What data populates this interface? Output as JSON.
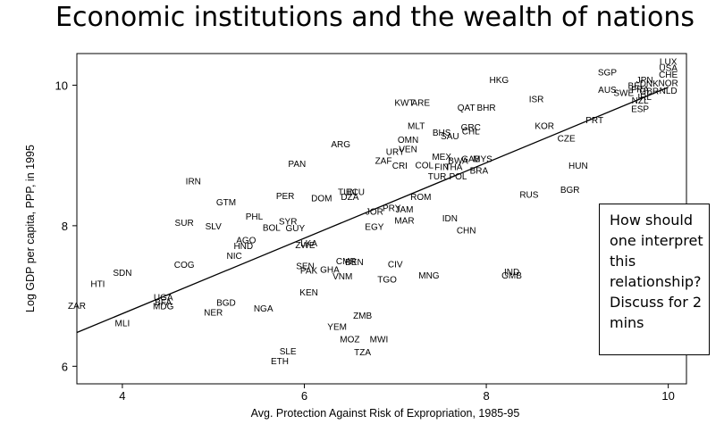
{
  "chart_data": {
    "type": "scatter",
    "title": "Economic institutions and the wealth of nations",
    "xlabel": "Avg. Protection Against Risk of Expropriation, 1985-95",
    "ylabel": "Log GDP per capita, PPP, in 1995",
    "xlim": [
      3.5,
      10.2
    ],
    "ylim": [
      5.75,
      10.45
    ],
    "xticks": [
      4,
      6,
      8,
      10
    ],
    "yticks": [
      6,
      8,
      10
    ],
    "grid": false,
    "fit_line": {
      "x": [
        3.5,
        10.0
      ],
      "y": [
        6.48,
        9.97
      ]
    },
    "points": [
      {
        "label": "ZAR",
        "x": 3.5,
        "y": 6.87
      },
      {
        "label": "HTI",
        "x": 3.73,
        "y": 7.18
      },
      {
        "label": "SDN",
        "x": 4.0,
        "y": 7.34
      },
      {
        "label": "MLI",
        "x": 4.0,
        "y": 6.62
      },
      {
        "label": "UGA",
        "x": 4.45,
        "y": 6.99
      },
      {
        "label": "MDG",
        "x": 4.45,
        "y": 6.86
      },
      {
        "label": "BFA",
        "x": 4.45,
        "y": 6.92
      },
      {
        "label": "COG",
        "x": 4.68,
        "y": 7.45
      },
      {
        "label": "BGD",
        "x": 5.14,
        "y": 6.91
      },
      {
        "label": "NER",
        "x": 5.0,
        "y": 6.77
      },
      {
        "label": "NGA",
        "x": 5.55,
        "y": 6.83
      },
      {
        "label": "IRN",
        "x": 4.78,
        "y": 8.64
      },
      {
        "label": "SUR",
        "x": 4.68,
        "y": 8.05
      },
      {
        "label": "SLV",
        "x": 5.0,
        "y": 8.0
      },
      {
        "label": "GTM",
        "x": 5.14,
        "y": 8.34
      },
      {
        "label": "PHL",
        "x": 5.45,
        "y": 8.14
      },
      {
        "label": "HND",
        "x": 5.33,
        "y": 7.72
      },
      {
        "label": "AGO",
        "x": 5.36,
        "y": 7.8
      },
      {
        "label": "NIC",
        "x": 5.23,
        "y": 7.58
      },
      {
        "label": "BOL",
        "x": 5.64,
        "y": 7.98
      },
      {
        "label": "GUY",
        "x": 5.9,
        "y": 7.97
      },
      {
        "label": "SYR",
        "x": 5.82,
        "y": 8.07
      },
      {
        "label": "PER",
        "x": 5.79,
        "y": 8.43
      },
      {
        "label": "PAN",
        "x": 5.92,
        "y": 8.89
      },
      {
        "label": "ARG",
        "x": 6.4,
        "y": 9.17
      },
      {
        "label": "DOM",
        "x": 6.19,
        "y": 8.4
      },
      {
        "label": "TUN",
        "x": 6.47,
        "y": 8.49
      },
      {
        "label": "ECU",
        "x": 6.56,
        "y": 8.49
      },
      {
        "label": "DZA",
        "x": 6.5,
        "y": 8.42
      },
      {
        "label": "ZMB",
        "x": 6.64,
        "y": 6.73
      },
      {
        "label": "YEM",
        "x": 6.36,
        "y": 6.57
      },
      {
        "label": "MOZ",
        "x": 6.5,
        "y": 6.39
      },
      {
        "label": "MWI",
        "x": 6.82,
        "y": 6.39
      },
      {
        "label": "TZA",
        "x": 6.64,
        "y": 6.21
      },
      {
        "label": "SLE",
        "x": 5.82,
        "y": 6.22
      },
      {
        "label": "ETH",
        "x": 5.73,
        "y": 6.08
      },
      {
        "label": "KEN",
        "x": 6.05,
        "y": 7.06
      },
      {
        "label": "SEN",
        "x": 6.01,
        "y": 7.43
      },
      {
        "label": "PAK",
        "x": 6.05,
        "y": 7.37
      },
      {
        "label": "GHA",
        "x": 6.28,
        "y": 7.38
      },
      {
        "label": "VNM",
        "x": 6.42,
        "y": 7.29
      },
      {
        "label": "CMR",
        "x": 6.46,
        "y": 7.5
      },
      {
        "label": "BEN",
        "x": 6.55,
        "y": 7.49
      },
      {
        "label": "ZWE",
        "x": 6.01,
        "y": 7.73
      },
      {
        "label": "LKA",
        "x": 6.05,
        "y": 7.76
      },
      {
        "label": "TGO",
        "x": 6.91,
        "y": 7.24
      },
      {
        "label": "CIV",
        "x": 7.0,
        "y": 7.46
      },
      {
        "label": "MNG",
        "x": 7.37,
        "y": 7.3
      },
      {
        "label": "EGY",
        "x": 6.77,
        "y": 7.99
      },
      {
        "label": "IDN",
        "x": 7.6,
        "y": 8.11
      },
      {
        "label": "MAR",
        "x": 7.1,
        "y": 8.08
      },
      {
        "label": "JAM",
        "x": 7.1,
        "y": 8.24
      },
      {
        "label": "PRY",
        "x": 6.96,
        "y": 8.26
      },
      {
        "label": "JOR",
        "x": 6.77,
        "y": 8.21
      },
      {
        "label": "ROM",
        "x": 7.28,
        "y": 8.42
      },
      {
        "label": "CHN",
        "x": 7.78,
        "y": 7.94
      },
      {
        "label": "IND",
        "x": 8.28,
        "y": 7.35
      },
      {
        "label": "GMB",
        "x": 8.28,
        "y": 7.3
      },
      {
        "label": "RUS",
        "x": 8.47,
        "y": 8.45
      },
      {
        "label": "BGR",
        "x": 8.92,
        "y": 8.52
      },
      {
        "label": "HUN",
        "x": 9.01,
        "y": 8.86
      },
      {
        "label": "CZE",
        "x": 8.88,
        "y": 9.25
      },
      {
        "label": "KOR",
        "x": 8.64,
        "y": 9.43
      },
      {
        "label": "PRT",
        "x": 9.19,
        "y": 9.51
      },
      {
        "label": "ESP",
        "x": 9.69,
        "y": 9.67
      },
      {
        "label": "ISR",
        "x": 8.55,
        "y": 9.81
      },
      {
        "label": "HKG",
        "x": 8.14,
        "y": 10.08
      },
      {
        "label": "SGP",
        "x": 9.33,
        "y": 10.19
      },
      {
        "label": "AUS",
        "x": 9.33,
        "y": 9.94
      },
      {
        "label": "SWE",
        "x": 9.51,
        "y": 9.9
      },
      {
        "label": "NZL",
        "x": 9.69,
        "y": 9.79
      },
      {
        "label": "LUX",
        "x": 10.0,
        "y": 10.34
      },
      {
        "label": "USA",
        "x": 10.0,
        "y": 10.25
      },
      {
        "label": "CHE",
        "x": 10.0,
        "y": 10.16
      },
      {
        "label": "NOR",
        "x": 10.0,
        "y": 10.04
      },
      {
        "label": "NLD",
        "x": 10.0,
        "y": 9.93
      },
      {
        "label": "JPN",
        "x": 9.74,
        "y": 10.08
      },
      {
        "label": "DNK",
        "x": 9.79,
        "y": 10.03
      },
      {
        "label": "BEL",
        "x": 9.65,
        "y": 10.0
      },
      {
        "label": "FRA",
        "x": 9.69,
        "y": 9.95
      },
      {
        "label": "GBR",
        "x": 9.79,
        "y": 9.92
      },
      {
        "label": "IRL",
        "x": 9.74,
        "y": 9.84
      },
      {
        "label": "KWT",
        "x": 7.1,
        "y": 9.76
      },
      {
        "label": "ARE",
        "x": 7.28,
        "y": 9.76
      },
      {
        "label": "QAT",
        "x": 7.78,
        "y": 9.69
      },
      {
        "label": "BHR",
        "x": 8.0,
        "y": 9.69
      },
      {
        "label": "MLT",
        "x": 7.23,
        "y": 9.43
      },
      {
        "label": "BHS",
        "x": 7.51,
        "y": 9.33
      },
      {
        "label": "SAU",
        "x": 7.6,
        "y": 9.28
      },
      {
        "label": "GRC",
        "x": 7.83,
        "y": 9.41
      },
      {
        "label": "CHL",
        "x": 7.83,
        "y": 9.35
      },
      {
        "label": "OMN",
        "x": 7.14,
        "y": 9.23
      },
      {
        "label": "VEN",
        "x": 7.14,
        "y": 9.1
      },
      {
        "label": "URY",
        "x": 7.0,
        "y": 9.06
      },
      {
        "label": "ZAF",
        "x": 6.87,
        "y": 8.93
      },
      {
        "label": "CRI",
        "x": 7.05,
        "y": 8.86
      },
      {
        "label": "COL",
        "x": 7.32,
        "y": 8.87
      },
      {
        "label": "MEX",
        "x": 7.51,
        "y": 8.99
      },
      {
        "label": "GAB",
        "x": 7.83,
        "y": 8.96
      },
      {
        "label": "MYS",
        "x": 7.96,
        "y": 8.96
      },
      {
        "label": "BWA",
        "x": 7.69,
        "y": 8.93
      },
      {
        "label": "FIN",
        "x": 7.51,
        "y": 8.84
      },
      {
        "label": "THA",
        "x": 7.64,
        "y": 8.84
      },
      {
        "label": "BRA",
        "x": 7.92,
        "y": 8.79
      },
      {
        "label": "TUR",
        "x": 7.46,
        "y": 8.71
      },
      {
        "label": "POL",
        "x": 7.69,
        "y": 8.71
      }
    ]
  },
  "note": {
    "lines": [
      "How should",
      "one interpret",
      "this",
      "relationship?",
      "Discuss for 2",
      "mins"
    ]
  }
}
